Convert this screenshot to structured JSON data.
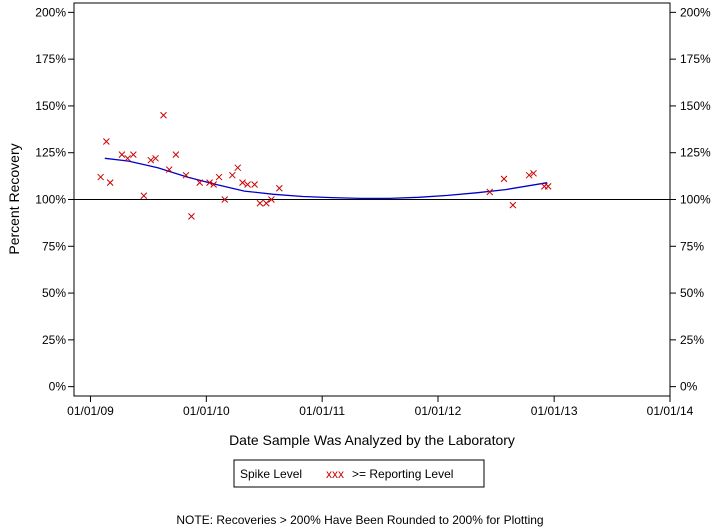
{
  "chart_data": {
    "type": "scatter",
    "xlabel": "Date Sample Was Analyzed by the Laboratory",
    "ylabel": "Percent Recovery",
    "x_ticks": [
      "01/01/09",
      "01/01/10",
      "01/01/11",
      "01/01/12",
      "01/01/13",
      "01/01/14"
    ],
    "y_ticks": [
      "0%",
      "25%",
      "50%",
      "75%",
      "100%",
      "125%",
      "150%",
      "175%",
      "200%"
    ],
    "xlim": [
      "2008-11-10",
      "2014-01-01"
    ],
    "ylim": [
      -5,
      205
    ],
    "reference_line": 100,
    "legend": {
      "position": "bottom-center",
      "spike_label": "Spike Level",
      "marker_glyph": "xxx",
      "marker_label": ">= Reporting Level"
    },
    "note": "NOTE: Recoveries > 200% Have Been Rounded to 200% for Plotting",
    "marker_color": "#cc0000",
    "fit_color": "#0000cc",
    "series": [
      {
        "points": [
          {
            "date": "2009-02-02",
            "value": 112
          },
          {
            "date": "2009-02-20",
            "value": 131
          },
          {
            "date": "2009-03-04",
            "value": 109
          },
          {
            "date": "2009-04-10",
            "value": 124
          },
          {
            "date": "2009-04-28",
            "value": 122
          },
          {
            "date": "2009-05-16",
            "value": 124
          },
          {
            "date": "2009-06-18",
            "value": 102
          },
          {
            "date": "2009-07-10",
            "value": 121
          },
          {
            "date": "2009-07-25",
            "value": 122
          },
          {
            "date": "2009-08-19",
            "value": 145
          },
          {
            "date": "2009-09-06",
            "value": 116
          },
          {
            "date": "2009-09-27",
            "value": 124
          },
          {
            "date": "2009-10-29",
            "value": 113
          },
          {
            "date": "2009-11-15",
            "value": 91
          },
          {
            "date": "2009-12-11",
            "value": 109
          },
          {
            "date": "2010-01-11",
            "value": 109
          },
          {
            "date": "2010-01-24",
            "value": 108
          },
          {
            "date": "2010-02-10",
            "value": 112
          },
          {
            "date": "2010-02-28",
            "value": 100
          },
          {
            "date": "2010-03-24",
            "value": 113
          },
          {
            "date": "2010-04-10",
            "value": 117
          },
          {
            "date": "2010-04-25",
            "value": 109
          },
          {
            "date": "2010-05-11",
            "value": 108
          },
          {
            "date": "2010-06-02",
            "value": 108
          },
          {
            "date": "2010-06-19",
            "value": 98
          },
          {
            "date": "2010-07-09",
            "value": 98
          },
          {
            "date": "2010-07-25",
            "value": 100
          },
          {
            "date": "2010-08-19",
            "value": 106
          },
          {
            "date": "2012-06-12",
            "value": 104
          },
          {
            "date": "2012-07-27",
            "value": 111
          },
          {
            "date": "2012-08-24",
            "value": 97
          },
          {
            "date": "2012-10-14",
            "value": 113
          },
          {
            "date": "2012-10-28",
            "value": 114
          },
          {
            "date": "2012-12-01",
            "value": 107
          },
          {
            "date": "2012-12-13",
            "value": 107
          }
        ]
      }
    ],
    "fit_curve": [
      {
        "date": "2009-02-15",
        "value": 122
      },
      {
        "date": "2009-05-01",
        "value": 120.5
      },
      {
        "date": "2009-08-01",
        "value": 117
      },
      {
        "date": "2009-11-01",
        "value": 112
      },
      {
        "date": "2010-02-01",
        "value": 108
      },
      {
        "date": "2010-05-01",
        "value": 104.5
      },
      {
        "date": "2010-08-01",
        "value": 102.8
      },
      {
        "date": "2010-11-01",
        "value": 101.6
      },
      {
        "date": "2011-02-01",
        "value": 101
      },
      {
        "date": "2011-05-01",
        "value": 100.6
      },
      {
        "date": "2011-08-01",
        "value": 100.6
      },
      {
        "date": "2011-11-01",
        "value": 101.2
      },
      {
        "date": "2012-02-01",
        "value": 102.2
      },
      {
        "date": "2012-05-01",
        "value": 103.6
      },
      {
        "date": "2012-08-01",
        "value": 105.3
      },
      {
        "date": "2012-12-10",
        "value": 109
      }
    ]
  }
}
